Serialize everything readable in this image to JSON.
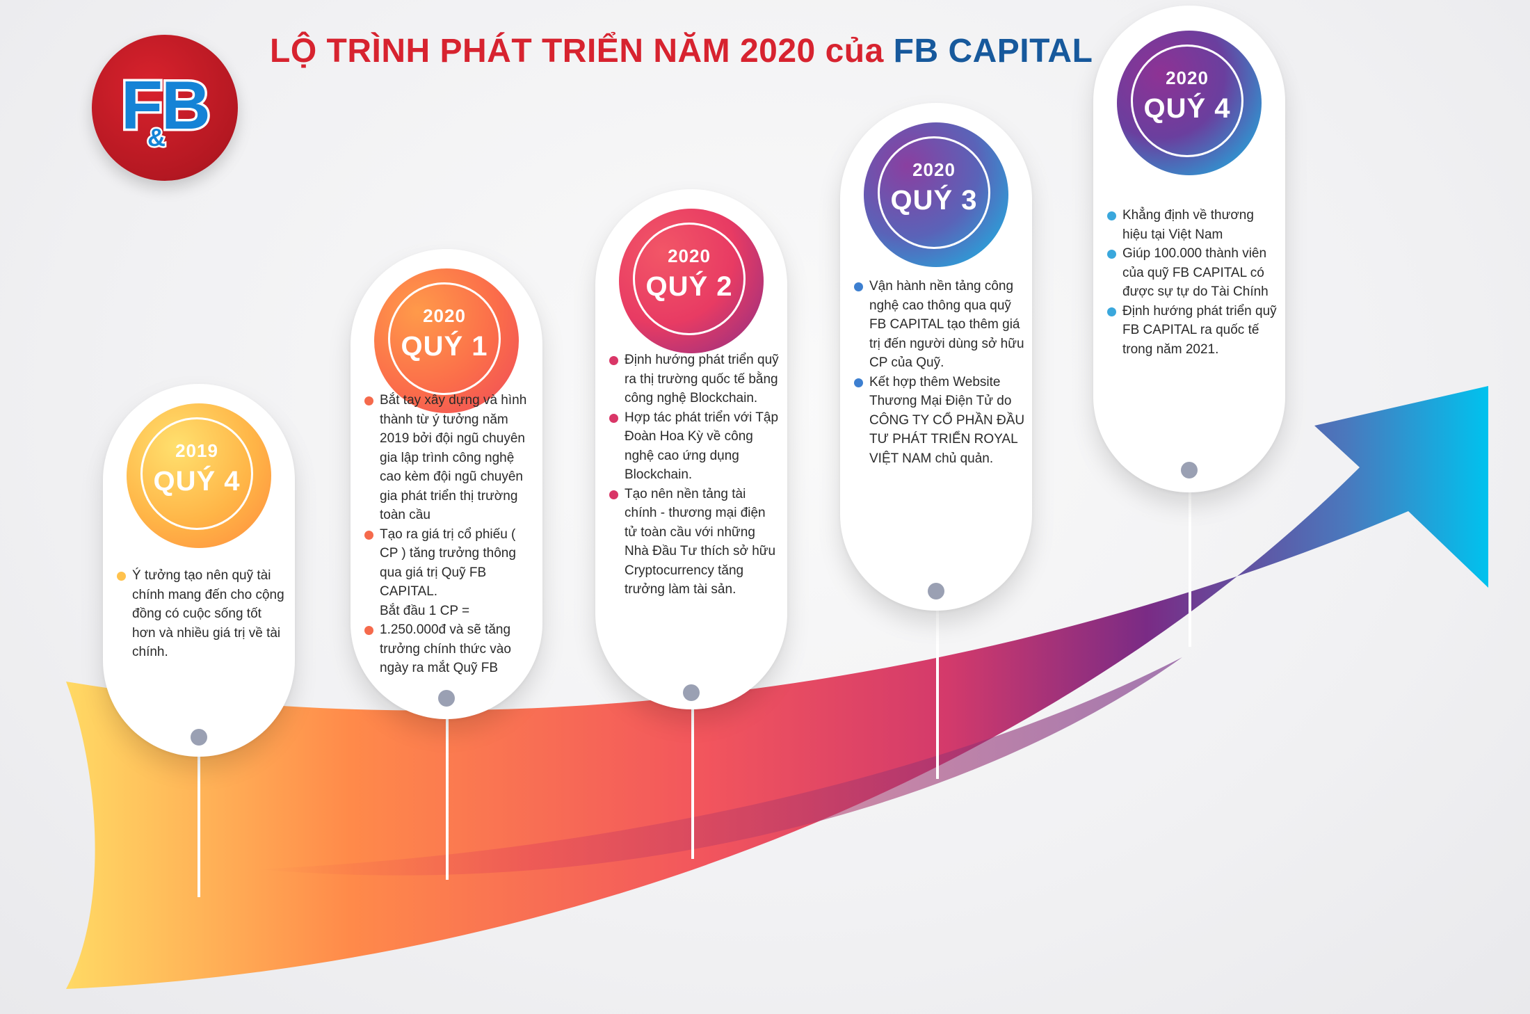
{
  "header": {
    "title_main": "LỘ TRÌNH PHÁT TRIỂN NĂM 2020 của",
    "title_brand": "FB CAPITAL"
  },
  "logo": {
    "text_left": "F",
    "text_amp": "&",
    "text_right": "B"
  },
  "colors": {
    "title_red": "#d7232f",
    "title_blue": "#17599c",
    "logo_red": "#c01c26",
    "logo_blue": "#1583d6",
    "arrow_start": "#ffd964",
    "arrow_mid": "#e8425f",
    "arrow_purple": "#7a2b85",
    "arrow_end": "#00c2ee"
  },
  "milestones": [
    {
      "year": "2019",
      "quarter": "QUÝ 4",
      "points": [
        "Ý tưởng tạo nên quỹ tài chính mang đến cho cộng đồng có cuộc sống tốt hơn và nhiều giá trị về tài chính."
      ]
    },
    {
      "year": "2020",
      "quarter": "QUÝ 1",
      "points": [
        "Bắt tay xây dựng và hình thành từ ý tưởng năm 2019 bởi đội ngũ chuyên gia lập trình công nghệ cao kèm đội ngũ chuyên gia phát triển thị trường toàn cầu",
        "Tạo ra giá trị cổ phiếu ( CP ) tăng trưởng thông qua giá trị Quỹ FB CAPITAL.",
        "Bắt đầu 1 CP =",
        "1.250.000đ và sẽ tăng trưởng chính thức vào ngày ra mắt Quỹ FB"
      ]
    },
    {
      "year": "2020",
      "quarter": "QUÝ 2",
      "points": [
        "Định hướng phát triển quỹ ra thị trường quốc tế bằng công nghệ Blockchain.",
        "Hợp tác phát triển với Tập Đoàn Hoa Kỳ về công nghệ cao ứng dụng Blockchain.",
        "Tạo nên nền tảng tài chính - thương mại điện tử toàn cầu với những Nhà Đầu Tư thích sở hữu Cryptocurrency tăng trưởng làm tài sản."
      ]
    },
    {
      "year": "2020",
      "quarter": "QUÝ 3",
      "points": [
        "Vận hành nền tảng công nghệ cao thông qua quỹ FB CAPITAL tạo thêm giá trị đến người dùng sở hữu CP của Quỹ.",
        "Kết hợp thêm Website Thương Mại Điện Tử do CÔNG TY CỔ PHẦN ĐẦU TƯ PHÁT TRIỂN ROYAL VIỆT NAM chủ quản."
      ]
    },
    {
      "year": "2020",
      "quarter": "QUÝ 4",
      "points": [
        "Khẳng định về thương hiệu tại Việt Nam",
        "Giúp 100.000 thành viên của quỹ FB CAPITAL có được sự tự do Tài Chính",
        "Định hướng phát triển quỹ FB CAPITAL ra quốc tế trong năm 2021."
      ]
    }
  ]
}
